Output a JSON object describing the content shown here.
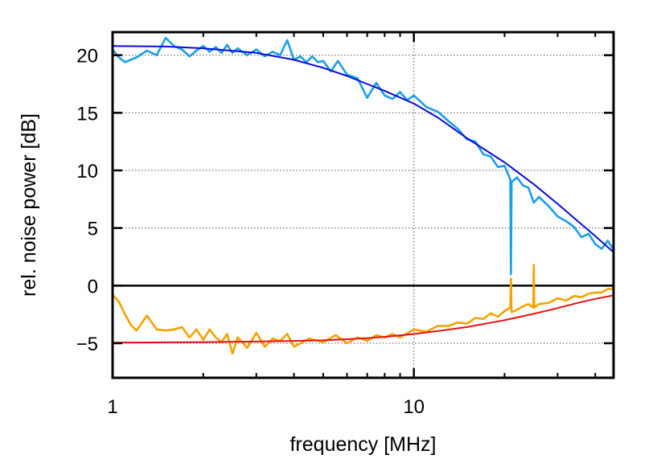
{
  "chart_data": {
    "type": "line",
    "title": "",
    "xlabel": "frequency [MHz]",
    "ylabel": "rel. noise power [dB]",
    "x_scale": "log",
    "xlim": [
      1,
      46
    ],
    "ylim": [
      -8,
      22
    ],
    "x_ticks": [
      1,
      10
    ],
    "x_tick_labels": [
      "1",
      "10"
    ],
    "y_ticks": [
      -5,
      0,
      5,
      10,
      15,
      20
    ],
    "y_tick_labels": [
      "−5",
      "0",
      "5",
      "10",
      "15",
      "20"
    ],
    "grid": "dotted",
    "legend": "none",
    "series": [
      {
        "style": "measured",
        "color": "#1a9fea",
        "x": [
          1.0,
          1.05,
          1.1,
          1.2,
          1.3,
          1.4,
          1.5,
          1.6,
          1.7,
          1.8,
          1.9,
          2.0,
          2.1,
          2.2,
          2.3,
          2.4,
          2.5,
          2.6,
          2.8,
          3.0,
          3.2,
          3.4,
          3.6,
          3.8,
          4.0,
          4.2,
          4.4,
          4.6,
          4.8,
          5.0,
          5.3,
          5.6,
          6.0,
          6.5,
          7.0,
          7.5,
          8.0,
          8.5,
          9.0,
          9.5,
          10.0,
          11.0,
          12.0,
          13.0,
          14.0,
          15.0,
          16.0,
          17.0,
          18.0,
          19.0,
          20.0,
          20.9,
          21.0,
          21.1,
          22.0,
          23.0,
          24.0,
          25.0,
          26.0,
          28.0,
          30.0,
          32.0,
          34.0,
          36.0,
          38.0,
          40.0,
          42.0,
          44.0,
          46.0
        ],
        "y": [
          20.5,
          19.8,
          19.4,
          19.8,
          20.4,
          20.0,
          21.5,
          20.8,
          20.5,
          19.9,
          20.4,
          20.8,
          20.3,
          20.7,
          20.2,
          20.9,
          20.2,
          20.6,
          20.0,
          20.5,
          19.9,
          20.3,
          20.0,
          21.3,
          19.6,
          19.9,
          19.4,
          19.9,
          19.4,
          19.5,
          18.6,
          19.5,
          18.3,
          18.0,
          16.3,
          17.6,
          16.5,
          16.2,
          16.8,
          16.1,
          16.5,
          15.5,
          15.1,
          14.3,
          13.6,
          12.7,
          12.5,
          11.4,
          11.2,
          10.3,
          10.4,
          9.2,
          1.0,
          9.0,
          9.4,
          8.7,
          8.5,
          7.2,
          7.7,
          6.9,
          6.0,
          5.6,
          5.1,
          4.2,
          4.5,
          3.6,
          3.2,
          3.9,
          3.1
        ]
      },
      {
        "style": "fit",
        "color": "#0b0bd6",
        "x": [
          1.0,
          1.5,
          2.0,
          3.0,
          4.0,
          5.0,
          6.0,
          7.0,
          8.0,
          10.0,
          12.0,
          15.0,
          20.0,
          25.0,
          30.0,
          35.0,
          40.0,
          46.0
        ],
        "y": [
          20.8,
          20.75,
          20.6,
          20.2,
          19.6,
          18.9,
          18.2,
          17.5,
          16.9,
          15.8,
          14.6,
          12.8,
          10.7,
          8.8,
          7.1,
          5.6,
          4.3,
          2.9
        ]
      },
      {
        "style": "measured",
        "color": "#f5a200",
        "x": [
          1.0,
          1.05,
          1.1,
          1.15,
          1.2,
          1.3,
          1.4,
          1.5,
          1.6,
          1.7,
          1.8,
          1.9,
          2.0,
          2.1,
          2.2,
          2.3,
          2.4,
          2.5,
          2.6,
          2.8,
          3.0,
          3.2,
          3.4,
          3.6,
          3.8,
          4.0,
          4.5,
          5.0,
          5.5,
          6.0,
          6.5,
          7.0,
          7.5,
          8.0,
          8.5,
          9.0,
          10.0,
          11.0,
          12.0,
          13.0,
          14.0,
          15.0,
          16.0,
          17.0,
          18.0,
          19.0,
          20.0,
          20.9,
          21.0,
          21.1,
          22.0,
          23.0,
          24.0,
          24.9,
          25.0,
          25.1,
          26.0,
          28.0,
          30.0,
          32.0,
          34.0,
          36.0,
          38.0,
          40.0,
          42.0,
          44.0,
          46.0
        ],
        "y": [
          -0.8,
          -1.4,
          -2.5,
          -3.4,
          -3.9,
          -2.6,
          -3.8,
          -3.9,
          -3.8,
          -3.6,
          -4.5,
          -3.8,
          -4.7,
          -3.8,
          -4.5,
          -4.9,
          -4.2,
          -5.9,
          -4.5,
          -5.4,
          -4.1,
          -5.3,
          -4.6,
          -4.8,
          -4.2,
          -5.3,
          -4.6,
          -4.9,
          -4.3,
          -5.0,
          -4.5,
          -4.8,
          -4.3,
          -4.5,
          -4.2,
          -4.5,
          -3.8,
          -4.0,
          -3.5,
          -3.5,
          -3.2,
          -3.3,
          -2.8,
          -2.9,
          -2.4,
          -2.7,
          -2.2,
          -1.9,
          0.6,
          -2.3,
          -2.1,
          -1.8,
          -1.6,
          -1.9,
          1.8,
          -1.9,
          -1.6,
          -1.5,
          -1.1,
          -1.3,
          -0.9,
          -1.0,
          -0.7,
          -0.6,
          -0.6,
          -0.3,
          -0.3
        ]
      },
      {
        "style": "fit",
        "color": "#e81010",
        "x": [
          1.0,
          2.0,
          3.0,
          4.0,
          5.0,
          6.0,
          7.0,
          8.0,
          10.0,
          12.0,
          15.0,
          20.0,
          25.0,
          30.0,
          35.0,
          40.0,
          46.0
        ],
        "y": [
          -4.95,
          -4.9,
          -4.85,
          -4.8,
          -4.75,
          -4.65,
          -4.55,
          -4.45,
          -4.2,
          -3.95,
          -3.6,
          -3.0,
          -2.45,
          -1.95,
          -1.5,
          -1.15,
          -0.85
        ]
      }
    ],
    "reference_line": {
      "y": 0,
      "color": "#000000"
    }
  }
}
